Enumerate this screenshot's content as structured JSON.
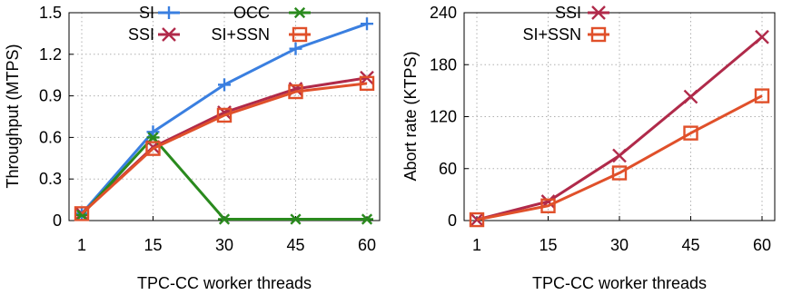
{
  "chart_data": [
    {
      "type": "line",
      "xlabel": "TPC-CC worker threads",
      "ylabel": "Throughput (MTPS)",
      "x_categories": [
        "1",
        "15",
        "30",
        "45",
        "60"
      ],
      "yticks": [
        "0",
        "0.3",
        "0.6",
        "0.9",
        "1.2",
        "1.5"
      ],
      "ylim": [
        0,
        1.5
      ],
      "grid": true,
      "legend_position": "top, two columns",
      "series": [
        {
          "name": "SI",
          "color": "#3a7fe0",
          "marker": "plus",
          "values": [
            0.05,
            0.64,
            0.98,
            1.24,
            1.42
          ]
        },
        {
          "name": "SSI",
          "color": "#b02a4a",
          "marker": "x",
          "values": [
            0.05,
            0.53,
            0.78,
            0.95,
            1.03
          ]
        },
        {
          "name": "OCC",
          "color": "#2a8a1e",
          "marker": "asterisk",
          "values": [
            0.04,
            0.6,
            0.01,
            0.01,
            0.01
          ]
        },
        {
          "name": "SI+SSN",
          "color": "#e0502a",
          "marker": "square",
          "values": [
            0.05,
            0.52,
            0.76,
            0.93,
            0.99
          ]
        }
      ]
    },
    {
      "type": "line",
      "xlabel": "TPC-CC worker threads",
      "ylabel": "Abort rate (KTPS)",
      "x_categories": [
        "1",
        "15",
        "30",
        "45",
        "60"
      ],
      "yticks": [
        "0",
        "60",
        "120",
        "180",
        "240"
      ],
      "ylim": [
        0,
        240
      ],
      "grid": true,
      "legend_position": "top-left",
      "series": [
        {
          "name": "SSI",
          "color": "#b02a4a",
          "marker": "x",
          "values": [
            1,
            22,
            75,
            143,
            212
          ]
        },
        {
          "name": "SI+SSN",
          "color": "#e0502a",
          "marker": "square",
          "values": [
            1,
            17,
            55,
            101,
            144
          ]
        }
      ]
    }
  ]
}
